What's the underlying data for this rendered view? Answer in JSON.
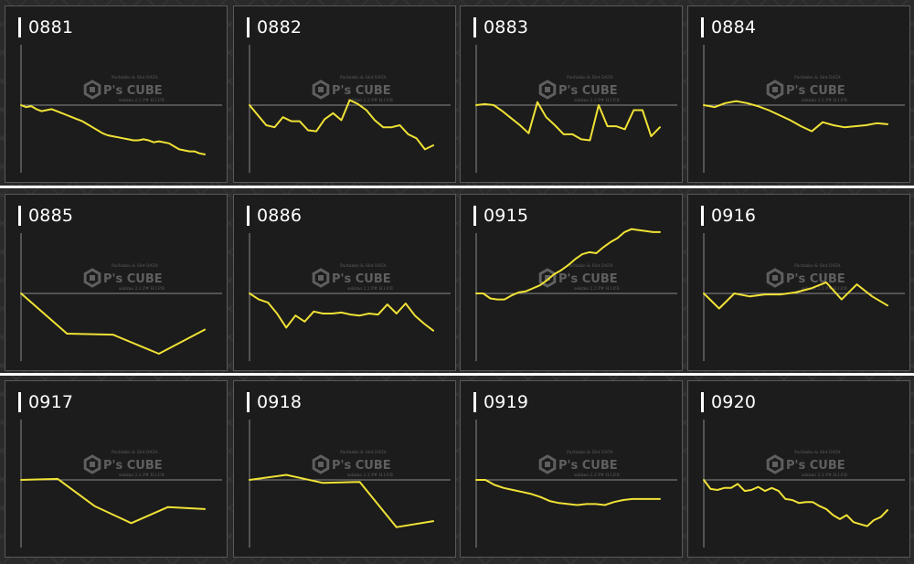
{
  "colors": {
    "line": "#f0e236",
    "axis": "#8a8a8a",
    "panel_bg": "#1c1c1c",
    "panel_border": "#595959",
    "watermark": "#5f5f5f"
  },
  "watermark": {
    "tagline": "Pachinko & Slot DATA",
    "brand": "P's CUBE",
    "subline": "sekimo 2.2 P# H.I.P.B"
  },
  "panels": [
    {
      "id": "0881",
      "chart_data": {
        "type": "line",
        "values": [
          0,
          -2,
          -1,
          -4,
          -6,
          -5,
          -4,
          -6,
          -8,
          -10,
          -12,
          -14,
          -16,
          -19,
          -22,
          -25,
          -28,
          -30,
          -31,
          -32,
          -33,
          -34,
          -35,
          -35,
          -34,
          -35,
          -37,
          -36,
          -37,
          -38,
          -41,
          -44,
          -45,
          -46,
          -46,
          -48,
          -49
        ]
      }
    },
    {
      "id": "0882",
      "chart_data": {
        "type": "line",
        "values": [
          0,
          -10,
          -20,
          -22,
          -12,
          -16,
          -16,
          -25,
          -26,
          -14,
          -8,
          -15,
          5,
          1,
          -5,
          -15,
          -22,
          -22,
          -20,
          -29,
          -33,
          -44,
          -40
        ]
      }
    },
    {
      "id": "0883",
      "chart_data": {
        "type": "line",
        "values": [
          0,
          1,
          0,
          -6,
          -13,
          -20,
          -28,
          3,
          -12,
          -20,
          -29,
          -29,
          -34,
          -35,
          0,
          -21,
          -21,
          -24,
          -5,
          -5,
          -31,
          -22
        ]
      }
    },
    {
      "id": "0884",
      "chart_data": {
        "type": "line",
        "values": [
          0,
          -2,
          2,
          4,
          2,
          -1,
          -5,
          -10,
          -15,
          -21,
          -26,
          -17,
          -20,
          -22,
          -21,
          -20,
          -18,
          -19
        ]
      }
    },
    {
      "id": "0885",
      "chart_data": {
        "type": "line",
        "values": [
          0,
          -40,
          -41,
          -60,
          -36
        ]
      }
    },
    {
      "id": "0886",
      "chart_data": {
        "type": "line",
        "values": [
          0,
          -6,
          -9,
          -20,
          -34,
          -22,
          -28,
          -18,
          -20,
          -20,
          -19,
          -21,
          -22,
          -20,
          -21,
          -11,
          -20,
          -10,
          -22,
          -30,
          -37
        ]
      }
    },
    {
      "id": "0915",
      "chart_data": {
        "type": "line",
        "values": [
          0,
          0,
          -5,
          -6,
          -6,
          -2,
          1,
          2,
          5,
          8,
          13,
          19,
          23,
          28,
          34,
          39,
          41,
          40,
          46,
          51,
          55,
          61,
          64,
          63,
          62,
          61,
          61
        ]
      }
    },
    {
      "id": "0916",
      "chart_data": {
        "type": "line",
        "values": [
          0,
          -15,
          0,
          -3,
          -1,
          -1,
          1,
          5,
          11,
          -6,
          9,
          -3,
          -12
        ]
      }
    },
    {
      "id": "0917",
      "chart_data": {
        "type": "line",
        "values": [
          0,
          1,
          -26,
          -43,
          -27,
          -29
        ]
      }
    },
    {
      "id": "0918",
      "chart_data": {
        "type": "line",
        "values": [
          0,
          5,
          -3,
          -2,
          -47,
          -41
        ]
      }
    },
    {
      "id": "0919",
      "chart_data": {
        "type": "line",
        "values": [
          0,
          0,
          -5,
          -8,
          -10,
          -12,
          -14,
          -17,
          -21,
          -23,
          -24,
          -25,
          -24,
          -24,
          -25,
          -22,
          -20,
          -19,
          -19,
          -19,
          -19
        ]
      }
    },
    {
      "id": "0920",
      "chart_data": {
        "type": "line",
        "values": [
          0,
          -9,
          -10,
          -8,
          -8,
          -4,
          -11,
          -10,
          -7,
          -11,
          -8,
          -11,
          -19,
          -20,
          -23,
          -22,
          -22,
          -26,
          -29,
          -35,
          -39,
          -35,
          -42,
          -44,
          -46,
          -40,
          -37,
          -30
        ]
      }
    }
  ]
}
